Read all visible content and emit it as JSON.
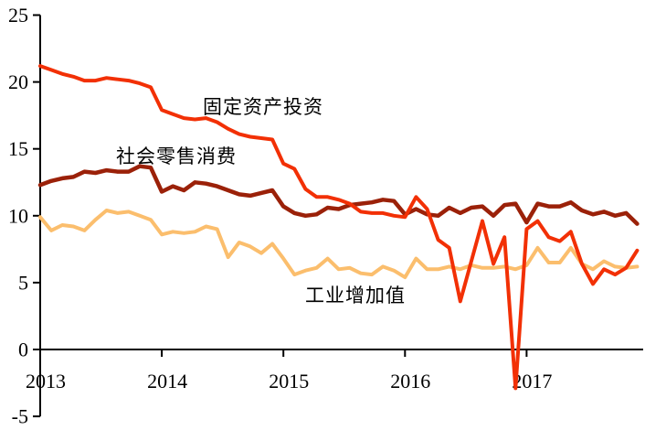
{
  "chart_data": {
    "type": "line",
    "title": "",
    "grid": false,
    "legend": "inline-labels",
    "x_axis": {
      "year_labels": [
        "2013",
        "2014",
        "2015",
        "2016",
        "2017"
      ],
      "points_per_year": 11,
      "x_unit": "month (Jan-Feb combined, Feb..Dec per year)"
    },
    "y_axis": {
      "ylim": [
        -5,
        25
      ],
      "ticks": [
        25,
        20,
        15,
        10,
        5,
        0,
        -5
      ]
    },
    "series": [
      {
        "name": "固定资产投资",
        "color": "#F23005",
        "values": [
          21.2,
          20.9,
          20.6,
          20.4,
          20.1,
          20.1,
          20.3,
          20.2,
          20.1,
          19.9,
          19.6,
          17.9,
          17.6,
          17.3,
          17.2,
          17.3,
          17.0,
          16.5,
          16.1,
          15.9,
          15.8,
          15.7,
          13.9,
          13.5,
          12.0,
          11.4,
          11.4,
          11.2,
          10.9,
          10.3,
          10.2,
          10.2,
          10.0,
          9.9,
          11.4,
          10.5,
          8.2,
          7.6,
          3.6,
          6.6,
          9.6,
          6.4,
          8.4,
          -2.9,
          9.0,
          9.6,
          8.4,
          8.1,
          8.8,
          6.4,
          4.9,
          6.0,
          5.6,
          6.1,
          7.4
        ]
      },
      {
        "name": "社会零售消费",
        "color": "#9B2109",
        "values": [
          12.3,
          12.6,
          12.8,
          12.9,
          13.3,
          13.2,
          13.4,
          13.3,
          13.3,
          13.7,
          13.6,
          11.8,
          12.2,
          11.9,
          12.5,
          12.4,
          12.2,
          11.9,
          11.6,
          11.5,
          11.7,
          11.9,
          10.7,
          10.2,
          10.0,
          10.1,
          10.6,
          10.5,
          10.8,
          10.9,
          11.0,
          11.2,
          11.1,
          10.1,
          10.5,
          10.1,
          10.0,
          10.6,
          10.2,
          10.6,
          10.7,
          10.0,
          10.8,
          10.9,
          9.5,
          10.9,
          10.7,
          10.7,
          11.0,
          10.4,
          10.1,
          10.3,
          10.0,
          10.2,
          9.4
        ]
      },
      {
        "name": "工业增加值",
        "color": "#FBBE6D",
        "values": [
          9.9,
          8.9,
          9.3,
          9.2,
          8.9,
          9.7,
          10.4,
          10.2,
          10.3,
          10.0,
          9.7,
          8.6,
          8.8,
          8.7,
          8.8,
          9.2,
          9.0,
          6.9,
          8.0,
          7.7,
          7.2,
          7.9,
          6.8,
          5.6,
          5.9,
          6.1,
          6.8,
          6.0,
          6.1,
          5.7,
          5.6,
          6.2,
          5.9,
          5.4,
          6.8,
          6.0,
          6.0,
          6.2,
          6.0,
          6.3,
          6.1,
          6.1,
          6.2,
          6.0,
          6.3,
          7.6,
          6.5,
          6.5,
          7.6,
          6.4,
          6.0,
          6.6,
          6.2,
          6.1,
          6.2
        ]
      }
    ]
  }
}
